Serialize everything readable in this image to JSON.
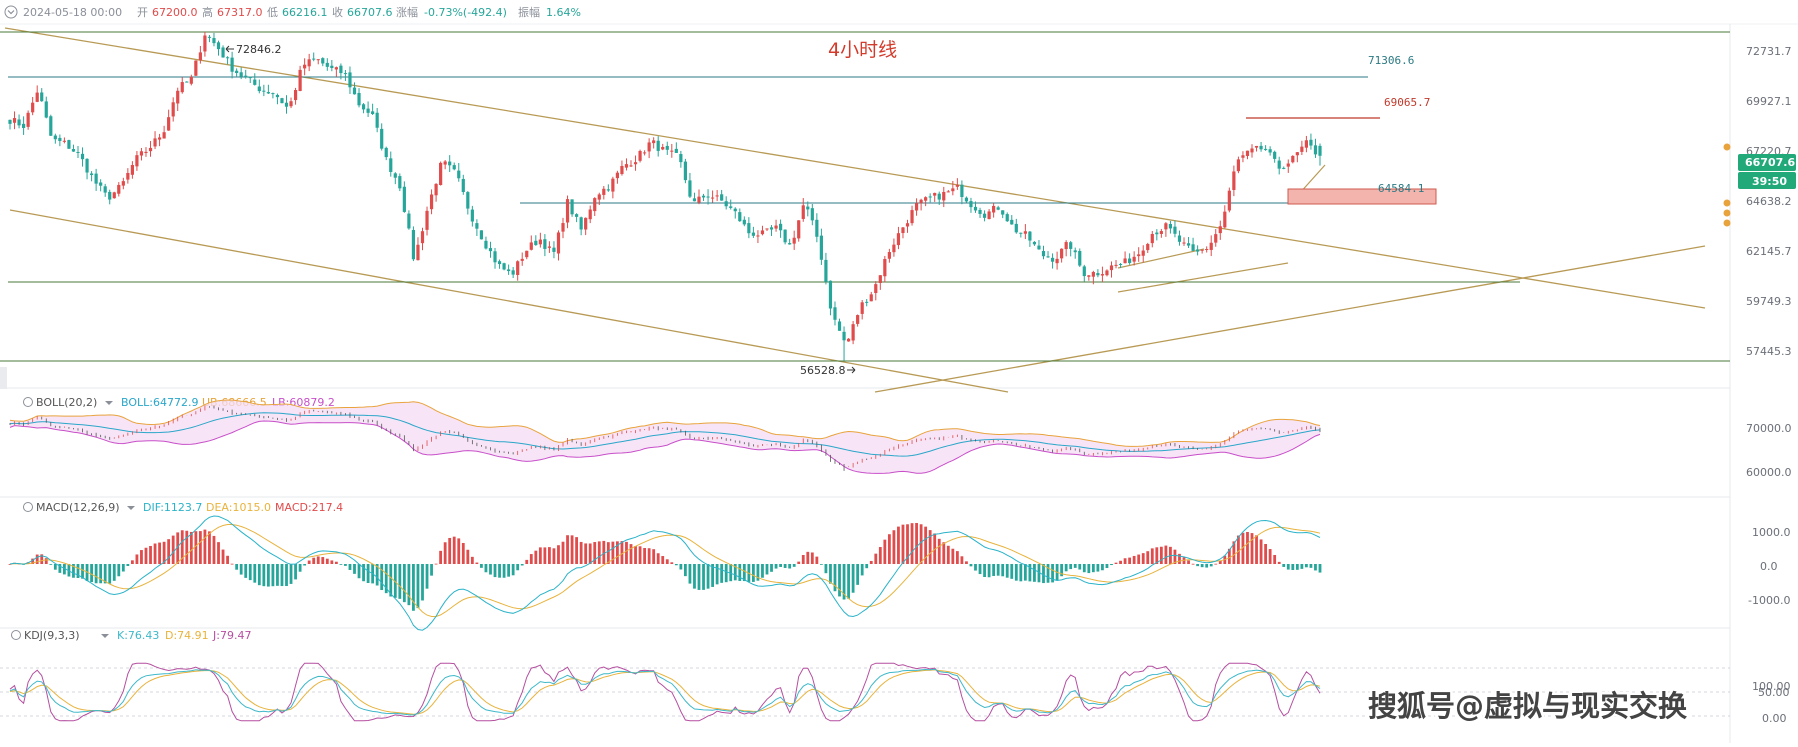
{
  "header": {
    "datetime": "2024-05-18 00:00",
    "open_label": "开",
    "open": "67200.0",
    "high_label": "高",
    "high": "67317.0",
    "low_label": "低",
    "low": "66216.1",
    "close_label": "收",
    "close": "66707.6",
    "change_label": "涨幅",
    "change": "-0.73%(-492.4)",
    "amplitude_label": "振幅",
    "amplitude": "1.64%"
  },
  "chart_title": "4小时线",
  "watermark": "搜狐号@虚拟与现实交换",
  "colors": {
    "up": "#e04b4b",
    "down": "#26a69a",
    "trend": "#b89a55",
    "hline_teal": "#2b7a84",
    "hline_green": "#4b7a3a",
    "resistance_red": "#c0392b",
    "zone_fill": "#f3b4ae",
    "price_tag": "#22a97a",
    "boll_mid": "#2aa6c9",
    "boll_ub": "#e8a33d",
    "boll_lb": "#c84fc9",
    "boll_fill": "#f4dcf4",
    "macd_dif": "#2ab3c9",
    "macd_dea": "#e8b33d",
    "kdj_k": "#3fb8c9",
    "kdj_d": "#e8b33d",
    "kdj_j": "#b54fa0"
  },
  "price_axis": {
    "ticks": [
      "72731.7",
      "69927.1",
      "67220.7",
      "64638.2",
      "62145.7",
      "59749.3",
      "57445.3"
    ],
    "current_price": "66707.6",
    "countdown": "39:50"
  },
  "annotations": {
    "high_marker": "72846.2",
    "low_marker": "56528.8",
    "level_71306": "71306.6",
    "level_69065": "69065.7",
    "level_64584": "64584.1"
  },
  "boll": {
    "name": "BOLL(20,2)",
    "boll": "BOLL:64772.9",
    "ub": "UB:68666.5",
    "lb": "LB:60879.2",
    "ticks": [
      "70000.0",
      "60000.0"
    ]
  },
  "macd": {
    "name": "MACD(12,26,9)",
    "dif": "DIF:1123.7",
    "dea": "DEA:1015.0",
    "macd": "MACD:217.4",
    "ticks": [
      "1000.0",
      "0.0",
      "-1000.0"
    ]
  },
  "kdj": {
    "name": "KDJ(9,3,3)",
    "k": "K:76.43",
    "d": "D:74.91",
    "j": "J:79.47",
    "ticks": [
      "100.00",
      "50.00",
      "0.00"
    ]
  },
  "chart_data": {
    "type": "candlestick",
    "title": "4小时线",
    "timeframe": "4H",
    "ylim": [
      56000,
      74000
    ],
    "last_candle": {
      "date": "2024-05-18 00:00",
      "open": 67200.0,
      "high": 67317.0,
      "low": 66216.1,
      "close": 66707.6
    },
    "labeled_high": 72846.2,
    "labeled_low": 56528.8,
    "horizontal_levels": [
      71306.6,
      69065.7,
      64584.1
    ],
    "price_path_approx": [
      68500,
      68200,
      70000,
      67500,
      67300,
      66700,
      65500,
      64600,
      65200,
      66500,
      67100,
      67900,
      70000,
      70500,
      72800,
      72000,
      71000,
      70500,
      70000,
      69800,
      69000,
      71200,
      71500,
      71000,
      70800,
      69300,
      68700,
      66500,
      65200,
      61500,
      64200,
      66400,
      65800,
      63900,
      62500,
      61300,
      60800,
      62000,
      62600,
      61800,
      64400,
      63000,
      64800,
      65200,
      66200,
      66600,
      67400,
      66900,
      66600,
      64300,
      64800,
      64500,
      63900,
      62900,
      62800,
      63100,
      62200,
      64400,
      62500,
      58800,
      57300,
      59200,
      60100,
      61900,
      63100,
      64200,
      64600,
      64800,
      65100,
      64300,
      63800,
      64200,
      63100,
      62700,
      61800,
      61600,
      62400,
      60900,
      60900,
      61200,
      61400,
      61900,
      62900,
      63200,
      62400,
      61800,
      62200,
      63400,
      66400,
      66900,
      67100,
      66100,
      66500,
      67300,
      66707.6
    ],
    "indicators": {
      "BOLL(20,2)": {
        "BOLL": 64772.9,
        "UB": 68666.5,
        "LB": 60879.2
      },
      "MACD(12,26,9)": {
        "DIF": 1123.7,
        "DEA": 1015.0,
        "MACD": 217.4
      },
      "KDJ(9,3,3)": {
        "K": 76.43,
        "D": 74.91,
        "J": 79.47
      }
    }
  }
}
